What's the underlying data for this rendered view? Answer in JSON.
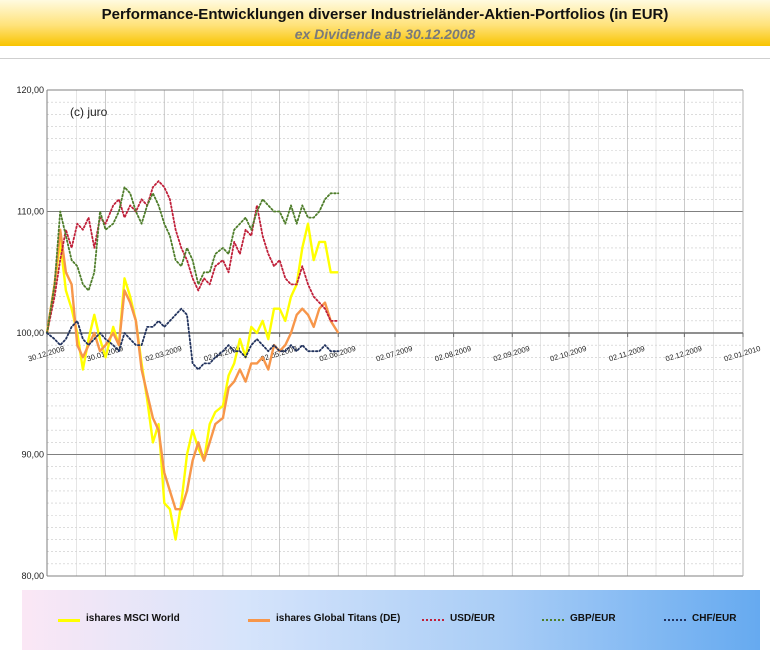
{
  "header": {
    "title": "Performance-Entwicklungen diverser Industrieländer-Aktien-Portfolios (in EUR)",
    "subtitle": "ex Dividende ab 30.12.2008"
  },
  "watermark": "(c) juro",
  "chart_data": {
    "type": "line",
    "title": "Performance-Entwicklungen diverser Industrieländer-Aktien-Portfolios (in EUR)",
    "subtitle": "ex Dividende ab 30.12.2008",
    "xlabel": "",
    "ylabel": "",
    "x_axis": {
      "type": "date",
      "range": [
        "2008-12-30",
        "2010-01-02"
      ],
      "tick_dates": [
        "2008-12-30",
        "2009-01-30",
        "2009-03-02",
        "2009-04-02",
        "2009-05-02",
        "2009-06-02",
        "2009-07-02",
        "2009-08-02",
        "2009-09-02",
        "2009-10-02",
        "2009-11-02",
        "2009-12-02",
        "2010-01-02"
      ],
      "tick_labels": [
        "30.12.2008",
        "30.01.2009",
        "02.03.2009",
        "02.04.2009",
        "02.05.2009",
        "02.06.2009",
        "02.07.2009",
        "02.08.2009",
        "02.09.2009",
        "02.10.2009",
        "02.11.2009",
        "02.12.2009",
        "02.01.2010"
      ]
    },
    "y_axis": {
      "range": [
        80,
        120
      ],
      "ticks": [
        80,
        90,
        100,
        110,
        120
      ],
      "tick_labels": [
        "80,00",
        "90,00",
        "100,00",
        "110,00",
        "120,00"
      ],
      "minor_step": 1
    },
    "grid": true,
    "legend_position": "bottom",
    "x": [
      "2008-12-30",
      "2009-01-03",
      "2009-01-06",
      "2009-01-09",
      "2009-01-12",
      "2009-01-15",
      "2009-01-18",
      "2009-01-21",
      "2009-01-24",
      "2009-01-27",
      "2009-01-30",
      "2009-02-03",
      "2009-02-06",
      "2009-02-09",
      "2009-02-12",
      "2009-02-15",
      "2009-02-18",
      "2009-02-21",
      "2009-02-24",
      "2009-02-27",
      "2009-03-02",
      "2009-03-05",
      "2009-03-08",
      "2009-03-11",
      "2009-03-14",
      "2009-03-17",
      "2009-03-20",
      "2009-03-23",
      "2009-03-26",
      "2009-03-29",
      "2009-04-02",
      "2009-04-05",
      "2009-04-08",
      "2009-04-11",
      "2009-04-14",
      "2009-04-17",
      "2009-04-20",
      "2009-04-23",
      "2009-04-26",
      "2009-04-29",
      "2009-05-02",
      "2009-05-05",
      "2009-05-08",
      "2009-05-11",
      "2009-05-14",
      "2009-05-17",
      "2009-05-20",
      "2009-05-23",
      "2009-05-26",
      "2009-05-29",
      "2009-06-02"
    ],
    "series": [
      {
        "name": "ishares MSCI World",
        "color": "#ffff00",
        "style": "solid",
        "values": [
          100.0,
          104.0,
          107.5,
          103.5,
          102.0,
          100.0,
          97.0,
          99.5,
          101.5,
          99.5,
          98.0,
          100.5,
          99.0,
          104.5,
          103.0,
          101.0,
          97.5,
          94.5,
          91.0,
          92.5,
          86.0,
          85.5,
          83.0,
          86.0,
          90.0,
          92.0,
          90.5,
          89.5,
          92.5,
          93.5,
          94.0,
          96.5,
          97.5,
          99.5,
          98.0,
          100.5,
          100.0,
          101.0,
          99.5,
          102.0,
          102.0,
          101.0,
          103.0,
          104.0,
          107.0,
          109.0,
          106.0,
          107.5,
          107.5,
          105.0,
          105.0
        ]
      },
      {
        "name": "ishares Global Titans (DE)",
        "color": "#f7964a",
        "style": "solid",
        "values": [
          100.0,
          104.0,
          108.5,
          105.0,
          104.0,
          99.0,
          98.0,
          99.0,
          100.0,
          98.5,
          99.0,
          100.0,
          99.0,
          103.5,
          102.5,
          101.0,
          97.0,
          95.0,
          93.0,
          92.0,
          88.5,
          87.0,
          85.5,
          85.5,
          87.0,
          89.5,
          91.0,
          89.5,
          91.0,
          92.5,
          93.0,
          95.5,
          96.0,
          97.0,
          96.0,
          97.5,
          97.5,
          98.0,
          97.0,
          99.0,
          98.5,
          99.0,
          100.0,
          101.5,
          102.0,
          101.5,
          100.5,
          102.0,
          102.5,
          101.0,
          100.0
        ]
      },
      {
        "name": "USD/EUR",
        "color": "#c0203a",
        "style": "dotted",
        "values": [
          100.0,
          103.0,
          106.0,
          108.5,
          107.0,
          109.0,
          108.5,
          109.5,
          107.0,
          109.5,
          109.0,
          110.5,
          111.0,
          109.5,
          110.5,
          110.0,
          111.0,
          110.5,
          112.0,
          112.5,
          112.0,
          111.0,
          108.5,
          107.0,
          106.0,
          104.5,
          103.5,
          104.5,
          104.0,
          105.5,
          106.0,
          105.0,
          107.5,
          106.5,
          108.5,
          108.0,
          110.5,
          108.0,
          106.5,
          105.5,
          106.0,
          104.5,
          104.0,
          104.0,
          105.5,
          104.0,
          103.0,
          102.5,
          102.0,
          101.0,
          101.0
        ]
      },
      {
        "name": "GBP/EUR",
        "color": "#4e7d2a",
        "style": "dotted",
        "values": [
          100.0,
          104.0,
          110.0,
          108.0,
          106.0,
          105.5,
          104.0,
          103.5,
          105.0,
          110.0,
          108.5,
          109.0,
          110.0,
          112.0,
          111.5,
          110.0,
          109.0,
          110.5,
          111.5,
          110.5,
          109.0,
          108.0,
          106.0,
          105.5,
          107.0,
          106.0,
          104.0,
          105.0,
          105.0,
          106.5,
          107.0,
          106.5,
          108.5,
          109.0,
          109.5,
          108.5,
          110.0,
          111.0,
          110.5,
          110.0,
          110.0,
          109.0,
          110.5,
          109.0,
          110.5,
          109.5,
          109.5,
          110.0,
          111.0,
          111.5,
          111.5
        ]
      },
      {
        "name": "CHF/EUR",
        "color": "#22335e",
        "style": "dotted",
        "values": [
          100.0,
          99.5,
          99.0,
          99.5,
          100.5,
          101.0,
          99.5,
          99.0,
          99.5,
          100.0,
          99.5,
          99.0,
          98.5,
          100.0,
          99.5,
          99.0,
          99.0,
          100.5,
          100.5,
          101.0,
          100.5,
          101.0,
          101.5,
          102.0,
          101.5,
          97.5,
          97.0,
          97.5,
          97.5,
          98.0,
          98.5,
          99.0,
          98.5,
          98.5,
          98.0,
          99.0,
          99.5,
          99.0,
          98.5,
          99.0,
          98.5,
          98.5,
          99.0,
          98.5,
          99.0,
          98.5,
          98.5,
          98.5,
          99.0,
          98.5,
          98.5
        ]
      }
    ]
  }
}
